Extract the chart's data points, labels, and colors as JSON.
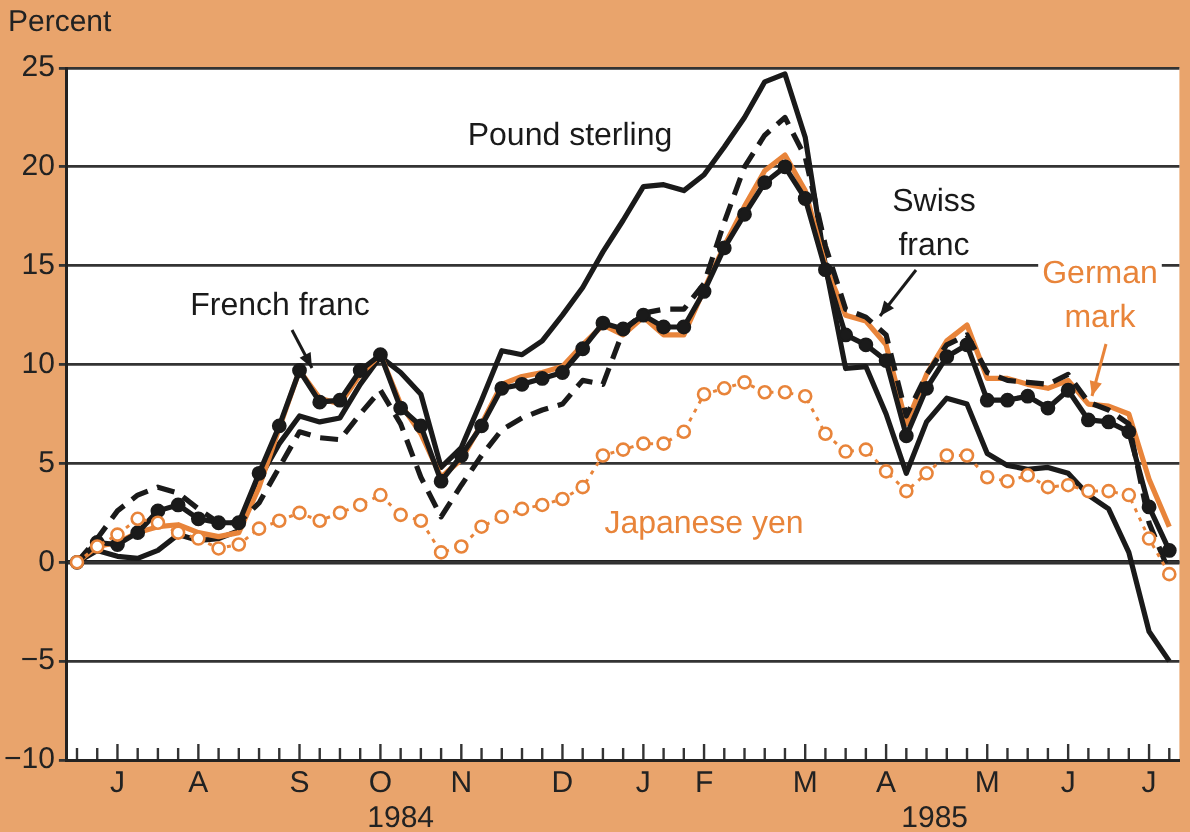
{
  "chart_data": {
    "type": "line",
    "ylabel": "Percent",
    "annotations": [
      "1984",
      "1985"
    ],
    "categories": [
      null,
      null,
      "J",
      null,
      null,
      null,
      "A",
      null,
      null,
      null,
      null,
      "S",
      null,
      null,
      null,
      "O",
      null,
      null,
      null,
      "N",
      null,
      null,
      null,
      null,
      "D",
      null,
      null,
      null,
      "J",
      null,
      null,
      "F",
      null,
      null,
      null,
      null,
      "M",
      null,
      null,
      null,
      "A",
      null,
      null,
      null,
      null,
      "M",
      null,
      null,
      null,
      "J",
      null,
      null,
      null,
      "J",
      null
    ],
    "ylim": [
      -10,
      25
    ],
    "yticks": [
      -10,
      -5,
      0,
      5,
      10,
      15,
      20,
      25
    ],
    "grid": "y",
    "legend": false,
    "series": [
      {
        "name": "Pound sterling",
        "color": "#1a1a1a",
        "marker": "none",
        "line_style": "solid",
        "values": [
          0,
          0.6,
          0.3,
          0.2,
          0.6,
          1.4,
          1.1,
          1.2,
          1.6,
          4.2,
          6.0,
          7.4,
          7.1,
          7.3,
          9.0,
          10.4,
          9.6,
          8.5,
          4.8,
          5.8,
          8.2,
          10.7,
          10.5,
          11.2,
          12.5,
          13.9,
          15.7,
          17.3,
          19.0,
          19.1,
          18.8,
          19.6,
          21.0,
          22.5,
          24.3,
          24.7,
          21.5,
          15.0,
          9.8,
          9.9,
          7.5,
          4.5,
          7.1,
          8.3,
          8.0,
          5.5,
          4.9,
          4.7,
          4.8,
          4.5,
          3.4,
          2.7,
          0.5,
          -3.5,
          -5.0
        ]
      },
      {
        "name": "German mark",
        "color": "#e8843a",
        "marker": "none",
        "line_style": "solid",
        "values": [
          0,
          0.8,
          1.0,
          1.5,
          1.8,
          1.9,
          1.5,
          1.3,
          1.5,
          3.8,
          6.8,
          9.7,
          8.3,
          8.0,
          9.5,
          10.5,
          8.0,
          6.5,
          4.3,
          5.2,
          7.0,
          9.0,
          9.4,
          9.6,
          9.9,
          11.0,
          12.0,
          11.5,
          12.4,
          11.5,
          11.5,
          13.8,
          16.0,
          18.0,
          19.8,
          20.6,
          18.8,
          15.0,
          12.5,
          12.2,
          11.0,
          7.0,
          9.5,
          11.2,
          12.0,
          9.3,
          9.3,
          9.0,
          8.8,
          9.2,
          8.0,
          7.9,
          7.5,
          4.2,
          1.8
        ]
      },
      {
        "name": "Swiss franc",
        "color": "#1a1a1a",
        "marker": "none",
        "line_style": "dashed",
        "values": [
          0,
          1.2,
          2.6,
          3.4,
          3.8,
          3.5,
          2.7,
          2.0,
          2.0,
          3.0,
          4.8,
          6.6,
          6.3,
          6.2,
          7.5,
          8.7,
          7.0,
          4.3,
          2.3,
          3.9,
          5.4,
          6.7,
          7.3,
          7.7,
          8.0,
          9.2,
          9.0,
          11.7,
          12.6,
          12.8,
          12.8,
          14.1,
          17.2,
          20.0,
          21.6,
          22.5,
          20.5,
          16.0,
          12.8,
          12.4,
          11.5,
          7.4,
          9.5,
          11.0,
          11.5,
          9.6,
          9.2,
          9.1,
          9.0,
          9.5,
          8.1,
          7.7,
          7.0,
          2.0,
          -0.5
        ]
      },
      {
        "name": "French franc",
        "color": "#1a1a1a",
        "marker": "circle",
        "line_style": "solid",
        "values": [
          0,
          1.0,
          0.9,
          1.5,
          2.6,
          2.9,
          2.2,
          2.0,
          2.0,
          4.5,
          6.9,
          9.7,
          8.1,
          8.2,
          9.7,
          10.5,
          7.8,
          6.9,
          4.1,
          5.4,
          6.9,
          8.8,
          9.0,
          9.3,
          9.6,
          10.8,
          12.1,
          11.8,
          12.5,
          11.9,
          11.9,
          13.7,
          15.9,
          17.6,
          19.2,
          20.0,
          18.4,
          14.8,
          11.5,
          11.0,
          10.2,
          6.4,
          8.8,
          10.4,
          11.0,
          8.2,
          8.2,
          8.4,
          7.8,
          8.7,
          7.2,
          7.1,
          6.6,
          2.8,
          0.6
        ]
      },
      {
        "name": "Japanese yen",
        "color": "#e8843a",
        "marker": "circle",
        "line_style": "dotted",
        "values": [
          0,
          0.8,
          1.4,
          2.2,
          2.0,
          1.5,
          1.2,
          0.7,
          0.9,
          1.7,
          2.1,
          2.5,
          2.1,
          2.5,
          2.9,
          3.4,
          2.4,
          2.1,
          0.5,
          0.8,
          1.8,
          2.3,
          2.7,
          2.9,
          3.2,
          3.8,
          5.4,
          5.7,
          6.0,
          6.0,
          6.6,
          8.5,
          8.8,
          9.1,
          8.6,
          8.6,
          8.4,
          6.5,
          5.6,
          5.7,
          4.6,
          3.6,
          4.5,
          5.4,
          5.4,
          4.3,
          4.1,
          4.4,
          3.8,
          3.9,
          3.6,
          3.6,
          3.4,
          1.2,
          -0.6
        ]
      }
    ]
  }
}
